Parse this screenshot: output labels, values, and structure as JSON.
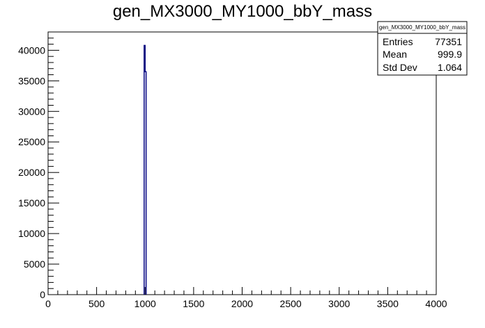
{
  "chart_data": {
    "type": "histogram",
    "title": "gen_MX3000_MY1000_bbY_mass",
    "xlabel": "",
    "ylabel": "",
    "xlim": [
      0,
      4000
    ],
    "ylim": [
      0,
      43000
    ],
    "x_ticks": [
      0,
      500,
      1000,
      1500,
      2000,
      2500,
      3000,
      3500,
      4000
    ],
    "y_ticks": [
      0,
      5000,
      10000,
      15000,
      20000,
      25000,
      30000,
      35000,
      40000
    ],
    "grid": false,
    "line_color": "#000080",
    "bins": [
      {
        "low": 990,
        "high": 1000,
        "value": 40800
      },
      {
        "low": 1000,
        "high": 1010,
        "value": 36500
      }
    ],
    "stats_box": {
      "title": "gen_MX3000_MY1000_bbY_mass",
      "placement": "top-right",
      "rows": [
        {
          "label": "Entries",
          "value": "77351"
        },
        {
          "label": "Mean",
          "value": "999.9"
        },
        {
          "label": "Std Dev",
          "value": "1.064"
        }
      ]
    }
  }
}
